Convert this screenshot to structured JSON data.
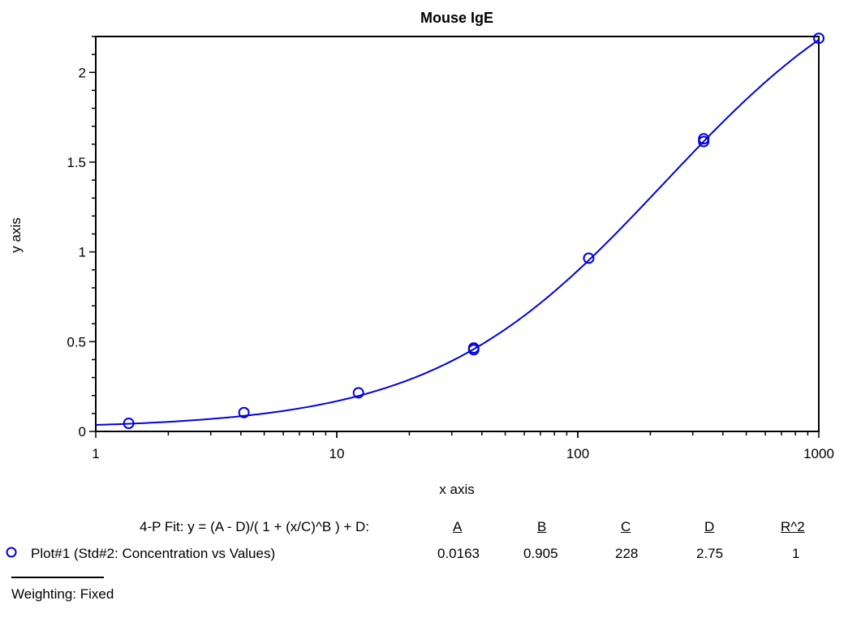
{
  "chart_data": {
    "type": "scatter",
    "title": "Mouse IgE",
    "xlabel": "x axis",
    "ylabel": "y axis",
    "xscale": "log",
    "xlim": [
      1,
      1000
    ],
    "ylim": [
      0,
      2.2
    ],
    "xticks": [
      1,
      10,
      100,
      1000
    ],
    "xtick_labels": [
      "1",
      "10",
      "100",
      "1000"
    ],
    "yticks": [
      0,
      0.5,
      1,
      1.5,
      2
    ],
    "ytick_labels": [
      "0",
      "0.5",
      "1",
      "1.5",
      "2"
    ],
    "grid": false,
    "colors": {
      "series": "#0000e0",
      "axis": "#000000"
    },
    "series": [
      {
        "name": "Plot#1 (Std#2: Concentration vs Values)",
        "marker": "open-circle",
        "points": [
          {
            "x": 1.37,
            "y": 0.045
          },
          {
            "x": 4.12,
            "y": 0.105
          },
          {
            "x": 12.3,
            "y": 0.215
          },
          {
            "x": 37,
            "y": 0.465
          },
          {
            "x": 37,
            "y": 0.455
          },
          {
            "x": 111,
            "y": 0.965
          },
          {
            "x": 333,
            "y": 1.615
          },
          {
            "x": 333,
            "y": 1.63
          },
          {
            "x": 1000,
            "y": 2.19
          }
        ],
        "fit": {
          "model": "4-P",
          "A": 0.0163,
          "B": 0.905,
          "C": 228,
          "D": 2.75,
          "R2": 1
        }
      }
    ]
  },
  "legend": {
    "fit_label": "4-P Fit:  y = (A - D)/( 1 + (x/C)^B ) + D:",
    "headers": [
      "A",
      "B",
      "C",
      "D",
      "R^2"
    ],
    "row_label": "Plot#1 (Std#2: Concentration vs Values)",
    "values": [
      "0.0163",
      "0.905",
      "228",
      "2.75",
      "1"
    ],
    "weighting": "Weighting: Fixed"
  }
}
